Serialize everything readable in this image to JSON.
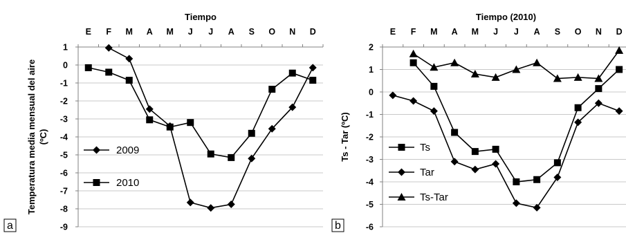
{
  "chart_data": [
    {
      "panel": "a",
      "type": "line",
      "title": "Tiempo",
      "ylabel": "Temperatura media mensual del aire (ºC)",
      "categories": [
        "E",
        "F",
        "M",
        "A",
        "M",
        "J",
        "J",
        "A",
        "S",
        "O",
        "N",
        "D"
      ],
      "ylim": [
        -9,
        1
      ],
      "yticks": [
        1,
        0,
        -1,
        -2,
        -3,
        -4,
        -5,
        -6,
        -7,
        -8,
        -9
      ],
      "grid": true,
      "legend_position": "left",
      "series": [
        {
          "name": "2009",
          "marker": "diamond",
          "values": [
            null,
            0.95,
            0.35,
            -2.45,
            -3.4,
            -7.65,
            -7.95,
            -7.75,
            -5.2,
            -3.55,
            -2.35,
            -0.15
          ]
        },
        {
          "name": "2010",
          "marker": "square",
          "values": [
            -0.15,
            -0.4,
            -0.85,
            -3.05,
            -3.45,
            -3.2,
            -4.95,
            -5.15,
            -3.8,
            -1.35,
            -0.45,
            -0.85
          ]
        }
      ]
    },
    {
      "panel": "b",
      "type": "line",
      "title": "Tiempo (2010)",
      "ylabel": "Ts - Tar (ºC)",
      "categories": [
        "E",
        "F",
        "M",
        "A",
        "M",
        "J",
        "J",
        "A",
        "S",
        "O",
        "N",
        "D"
      ],
      "ylim": [
        -6,
        2
      ],
      "yticks": [
        2,
        1,
        0,
        -1,
        -2,
        -3,
        -4,
        -5,
        -6
      ],
      "grid": true,
      "legend_position": "left",
      "series": [
        {
          "name": "Ts",
          "marker": "square",
          "values": [
            null,
            1.3,
            0.25,
            -1.8,
            -2.65,
            -2.55,
            -4.0,
            -3.9,
            -3.15,
            -0.7,
            0.15,
            1.0
          ]
        },
        {
          "name": "Tar",
          "marker": "diamond",
          "values": [
            -0.15,
            -0.4,
            -0.85,
            -3.1,
            -3.45,
            -3.2,
            -4.95,
            -5.15,
            -3.8,
            -1.35,
            -0.5,
            -0.85
          ]
        },
        {
          "name": "Ts-Tar",
          "marker": "triangle",
          "values": [
            null,
            1.7,
            1.1,
            1.3,
            0.8,
            0.65,
            1.0,
            1.3,
            0.6,
            0.65,
            0.6,
            1.85
          ]
        }
      ]
    }
  ]
}
